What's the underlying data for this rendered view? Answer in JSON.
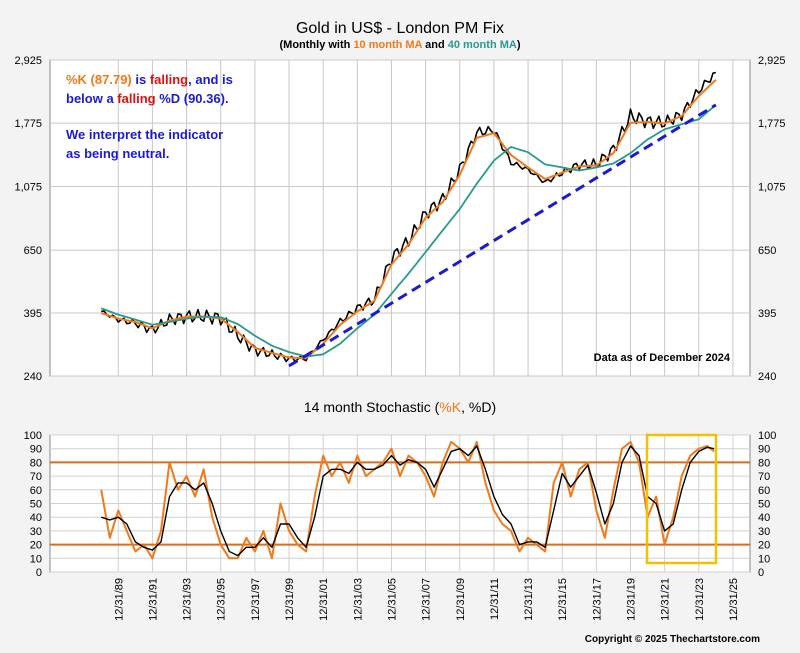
{
  "colors": {
    "background": "#f3f3f3",
    "plot_bg": "#ffffff",
    "price": "#000000",
    "ma10": "#f07a1a",
    "ma40": "#2a9a8e",
    "trendline": "#1a1ad6",
    "highlight": "#f5c000",
    "red": "#e01010",
    "blue": "#1a1ad6",
    "ref_line": "#e06a1a"
  },
  "title": "Gold in US$ - London PM Fix",
  "subtitle": {
    "prefix": "(Monthly with ",
    "ma10": "10 month MA",
    "and": " and ",
    "ma40": "40 month MA",
    "suffix": ")"
  },
  "annotation": {
    "line1_a": "%K (87.79)",
    "line1_b": " is ",
    "line1_c": "falling",
    "line1_d": ", and is",
    "line2_a": "below a ",
    "line2_b": "falling",
    "line2_c": " %D (90.36).",
    "line3": "We interpret the indicator",
    "line4": "as being neutral."
  },
  "data_asof": "Data as of December 2024",
  "copyright": "Copyright © 2025 Thechartstore.com",
  "stoch_title": {
    "prefix": "14 month Stochastic (",
    "k": "%K",
    "sep": ", ",
    "d": "%D",
    "suffix": ")"
  },
  "chart_data": [
    {
      "type": "line",
      "title": "Gold in US$ - London PM Fix",
      "y_scale": "log",
      "ylim": [
        240,
        2925
      ],
      "y_ticks": [
        "240",
        "395",
        "650",
        "1,075",
        "1,775",
        "2,925"
      ],
      "y_tick_values": [
        240,
        395,
        650,
        1075,
        1775,
        2925
      ],
      "x": [
        1989,
        1990,
        1991,
        1992,
        1993,
        1994,
        1995,
        1996,
        1997,
        1998,
        1999,
        2000,
        2001,
        2002,
        2003,
        2004,
        2005,
        2006,
        2007,
        2008,
        2009,
        2010,
        2011,
        2012,
        2013,
        2014,
        2015,
        2016,
        2017,
        2018,
        2019,
        2020,
        2021,
        2022,
        2023,
        2024,
        2025
      ],
      "series": [
        {
          "name": "Gold",
          "values": [
            400,
            375,
            365,
            345,
            375,
            385,
            385,
            380,
            330,
            295,
            285,
            275,
            275,
            320,
            370,
            410,
            440,
            610,
            700,
            870,
            970,
            1230,
            1650,
            1680,
            1300,
            1230,
            1110,
            1200,
            1280,
            1280,
            1440,
            1880,
            1800,
            1780,
            1900,
            2300,
            2650
          ]
        },
        {
          "name": "10 month MA",
          "values": [
            395,
            378,
            368,
            350,
            372,
            384,
            384,
            378,
            340,
            300,
            288,
            278,
            276,
            310,
            360,
            400,
            435,
            580,
            680,
            840,
            950,
            1180,
            1580,
            1640,
            1380,
            1250,
            1140,
            1200,
            1260,
            1270,
            1400,
            1780,
            1790,
            1770,
            1880,
            2200,
            2500
          ]
        },
        {
          "name": "40 month MA",
          "values": [
            410,
            390,
            375,
            360,
            368,
            378,
            384,
            382,
            362,
            330,
            305,
            290,
            280,
            285,
            310,
            350,
            390,
            460,
            540,
            640,
            760,
            900,
            1100,
            1320,
            1470,
            1410,
            1280,
            1250,
            1220,
            1250,
            1290,
            1400,
            1560,
            1690,
            1760,
            1830,
            2050
          ]
        }
      ],
      "trendline": {
        "from": [
          2000,
          260
        ],
        "to": [
          2025,
          2050
        ]
      }
    },
    {
      "type": "line",
      "title": "14 month Stochastic (%K, %D)",
      "ylim": [
        0,
        100
      ],
      "y_ticks": [
        0,
        10,
        20,
        30,
        40,
        50,
        60,
        70,
        80,
        90,
        100
      ],
      "reference_lines": [
        20,
        80
      ],
      "x_ticks": [
        "12/31/89",
        "12/31/91",
        "12/31/93",
        "12/31/95",
        "12/31/97",
        "12/31/99",
        "12/31/01",
        "12/31/03",
        "12/31/05",
        "12/31/07",
        "12/31/09",
        "12/31/11",
        "12/31/13",
        "12/31/15",
        "12/31/17",
        "12/31/19",
        "12/31/21",
        "12/31/23",
        "12/31/25"
      ],
      "x_tick_years": [
        1990,
        1992,
        1994,
        1996,
        1998,
        2000,
        2002,
        2004,
        2006,
        2008,
        2010,
        2012,
        2014,
        2016,
        2018,
        2020,
        2022,
        2024,
        2026
      ],
      "x": [
        1989.0,
        1989.5,
        1990.0,
        1990.5,
        1991.0,
        1991.5,
        1992.0,
        1992.5,
        1993.0,
        1993.5,
        1994.0,
        1994.5,
        1995.0,
        1995.5,
        1996.0,
        1996.5,
        1997.0,
        1997.5,
        1998.0,
        1998.5,
        1999.0,
        1999.5,
        2000.0,
        2000.5,
        2001.0,
        2001.5,
        2002.0,
        2002.5,
        2003.0,
        2003.5,
        2004.0,
        2004.5,
        2005.0,
        2005.5,
        2006.0,
        2006.5,
        2007.0,
        2007.5,
        2008.0,
        2008.5,
        2009.0,
        2009.5,
        2010.0,
        2010.5,
        2011.0,
        2011.5,
        2012.0,
        2012.5,
        2013.0,
        2013.5,
        2014.0,
        2014.5,
        2015.0,
        2015.5,
        2016.0,
        2016.5,
        2017.0,
        2017.5,
        2018.0,
        2018.5,
        2019.0,
        2019.5,
        2020.0,
        2020.5,
        2021.0,
        2021.5,
        2022.0,
        2022.5,
        2023.0,
        2023.5,
        2024.0,
        2024.5,
        2024.9
      ],
      "series": [
        {
          "name": "%K",
          "values": [
            60,
            25,
            45,
            30,
            15,
            20,
            10,
            30,
            80,
            60,
            70,
            55,
            75,
            40,
            20,
            10,
            10,
            25,
            15,
            30,
            10,
            50,
            30,
            20,
            15,
            55,
            85,
            70,
            80,
            65,
            85,
            70,
            75,
            80,
            90,
            70,
            85,
            80,
            70,
            55,
            80,
            95,
            90,
            80,
            95,
            65,
            45,
            35,
            30,
            15,
            25,
            20,
            15,
            65,
            80,
            55,
            75,
            80,
            45,
            25,
            60,
            90,
            95,
            80,
            40,
            55,
            20,
            40,
            70,
            85,
            90,
            92,
            88
          ]
        },
        {
          "name": "%D",
          "values": [
            40,
            38,
            40,
            35,
            22,
            18,
            16,
            22,
            55,
            65,
            65,
            60,
            65,
            50,
            30,
            15,
            12,
            18,
            18,
            25,
            18,
            35,
            35,
            25,
            18,
            40,
            70,
            75,
            75,
            72,
            80,
            75,
            75,
            78,
            85,
            78,
            82,
            80,
            75,
            62,
            75,
            88,
            90,
            85,
            92,
            75,
            55,
            42,
            35,
            20,
            22,
            22,
            18,
            45,
            72,
            62,
            70,
            78,
            58,
            35,
            50,
            80,
            92,
            85,
            55,
            50,
            30,
            35,
            60,
            80,
            88,
            91,
            90
          ]
        }
      ]
    }
  ]
}
